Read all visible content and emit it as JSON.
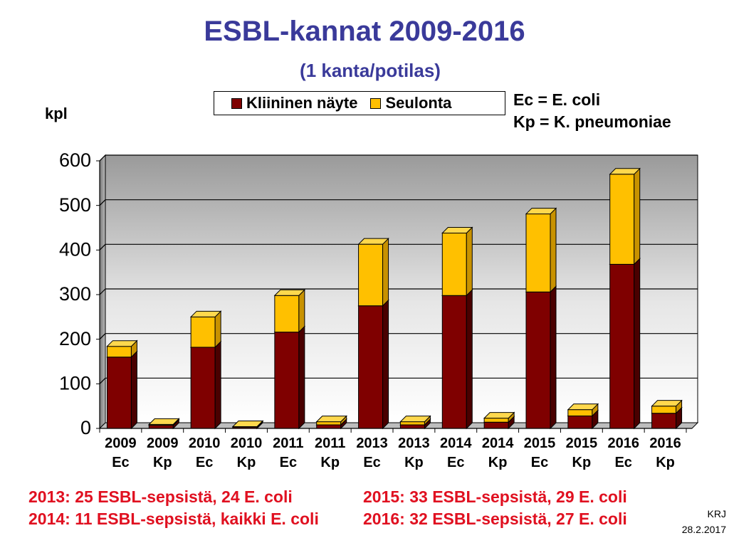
{
  "title": "ESBL-kannat 2009-2016",
  "subtitle": "(1 kanta/potilas)",
  "legend": {
    "items": [
      {
        "label": "Kliininen näyte",
        "color": "#7f0000"
      },
      {
        "label": "Seulonta",
        "color": "#ffc000"
      }
    ]
  },
  "abbreviations": [
    "Ec = E. coli",
    "Kp = K. pneumoniae"
  ],
  "notes": [
    "2013: 25 ESBL-sepsistä, 24 E. coli",
    "2014: 11 ESBL-sepsistä, kaikki E. coli",
    "2015: 33 ESBL-sepsistä, 29 E. coli",
    "2016: 32 ESBL-sepsistä, 27 E. coli"
  ],
  "credit": {
    "author": "KRJ",
    "date": "28.2.2017"
  },
  "chart_data": {
    "type": "bar",
    "stacked": true,
    "ylabel": "kpl",
    "ylim": [
      0,
      600
    ],
    "yticks": [
      0,
      100,
      200,
      300,
      400,
      500,
      600
    ],
    "grid": true,
    "legend_position": "top",
    "categories": [
      [
        "2009",
        "Ec"
      ],
      [
        "2009",
        "Kp"
      ],
      [
        "2010",
        "Ec"
      ],
      [
        "2010",
        "Kp"
      ],
      [
        "2011",
        "Ec"
      ],
      [
        "2011",
        "Kp"
      ],
      [
        "2013",
        "Ec"
      ],
      [
        "2013",
        "Kp"
      ],
      [
        "2014",
        "Ec"
      ],
      [
        "2014",
        "Kp"
      ],
      [
        "2015",
        "Ec"
      ],
      [
        "2015",
        "Kp"
      ],
      [
        "2016",
        "Ec"
      ],
      [
        "2016",
        "Kp"
      ]
    ],
    "series": [
      {
        "name": "Kliininen näyte",
        "color": "#7f0000",
        "values": [
          160,
          7,
          182,
          3,
          216,
          8,
          275,
          8,
          298,
          14,
          306,
          28,
          368,
          34
        ]
      },
      {
        "name": "Seulonta",
        "color": "#ffc000",
        "values": [
          24,
          2,
          68,
          1,
          82,
          7,
          138,
          7,
          140,
          9,
          175,
          14,
          202,
          16
        ]
      }
    ]
  }
}
